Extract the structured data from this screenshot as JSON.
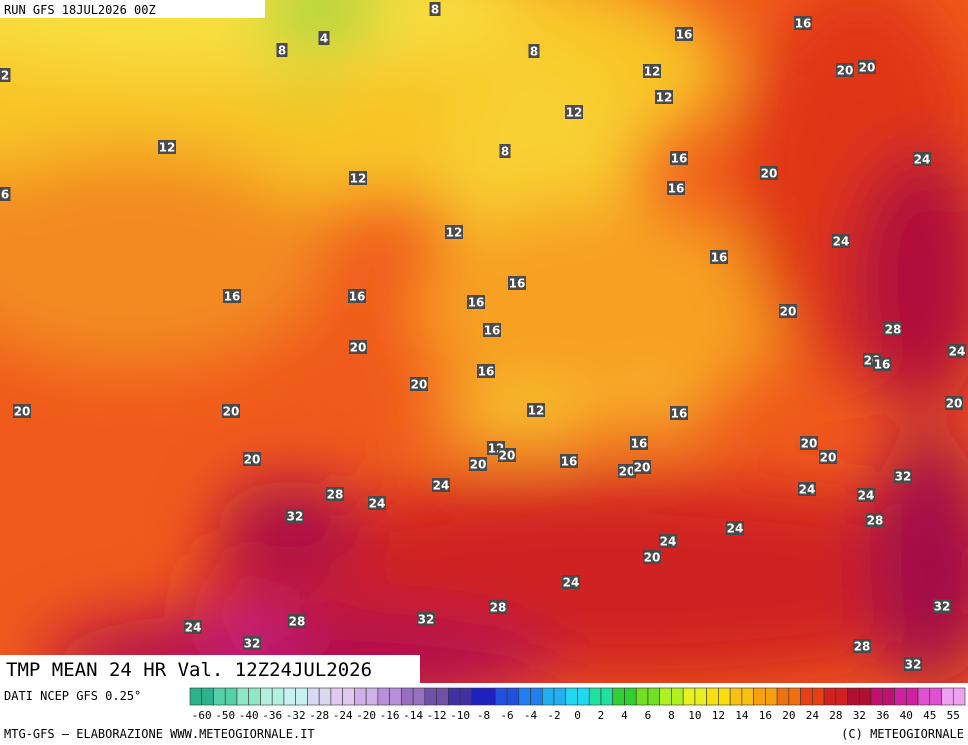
{
  "header": {
    "run": "RUN GFS 18JUL2026 00Z"
  },
  "map": {
    "title": "TMP MEAN 24 HR Val. 12Z24JUL2026",
    "contour_labels": [
      8,
      4,
      8,
      2,
      8,
      16,
      16,
      12,
      12,
      20,
      20,
      12,
      12,
      8,
      16,
      12,
      20,
      24,
      16,
      6,
      12,
      24,
      16,
      16,
      16,
      16,
      16,
      20,
      16,
      28,
      20,
      20,
      16,
      24,
      16,
      20,
      20,
      20,
      12,
      16,
      20,
      16,
      12,
      20,
      20,
      20,
      20,
      20,
      16,
      20,
      20,
      32,
      24,
      28,
      24,
      24,
      24,
      32,
      28,
      24,
      24,
      20,
      24,
      28,
      32,
      24,
      28,
      32,
      32,
      28,
      32
    ]
  },
  "scale": {
    "labels": [
      -60,
      -50,
      -40,
      -36,
      -32,
      -28,
      -24,
      -20,
      -16,
      -14,
      -12,
      -10,
      -8,
      -6,
      -4,
      -2,
      0,
      2,
      4,
      6,
      8,
      10,
      12,
      14,
      16,
      20,
      24,
      28,
      32,
      36,
      40,
      45,
      55
    ],
    "colors": [
      "#2db38c",
      "#55d0a8",
      "#8ee8c8",
      "#b0f0dc",
      "#c8f0f0",
      "#d8d8f0",
      "#e0c8f0",
      "#d0b0e8",
      "#b890d8",
      "#9870c0",
      "#7050a8",
      "#4030a0",
      "#2020c0",
      "#2050e0",
      "#2080f0",
      "#20b0f0",
      "#20d8f0",
      "#20e0a0",
      "#30d030",
      "#70e020",
      "#b0f020",
      "#e8f020",
      "#f8e010",
      "#f8c010",
      "#f8a010",
      "#f07010",
      "#e84010",
      "#d02020",
      "#b01030",
      "#c01070",
      "#d020a0",
      "#e050d0",
      "#f0a0f0"
    ]
  },
  "footer": {
    "source": "DATI NCEP GFS 0.25°",
    "credit": "MTG-GFS – ELABORAZIONE WWW.METEOGIORNALE.IT",
    "copyright": "(C) METEOGIORNALE"
  }
}
